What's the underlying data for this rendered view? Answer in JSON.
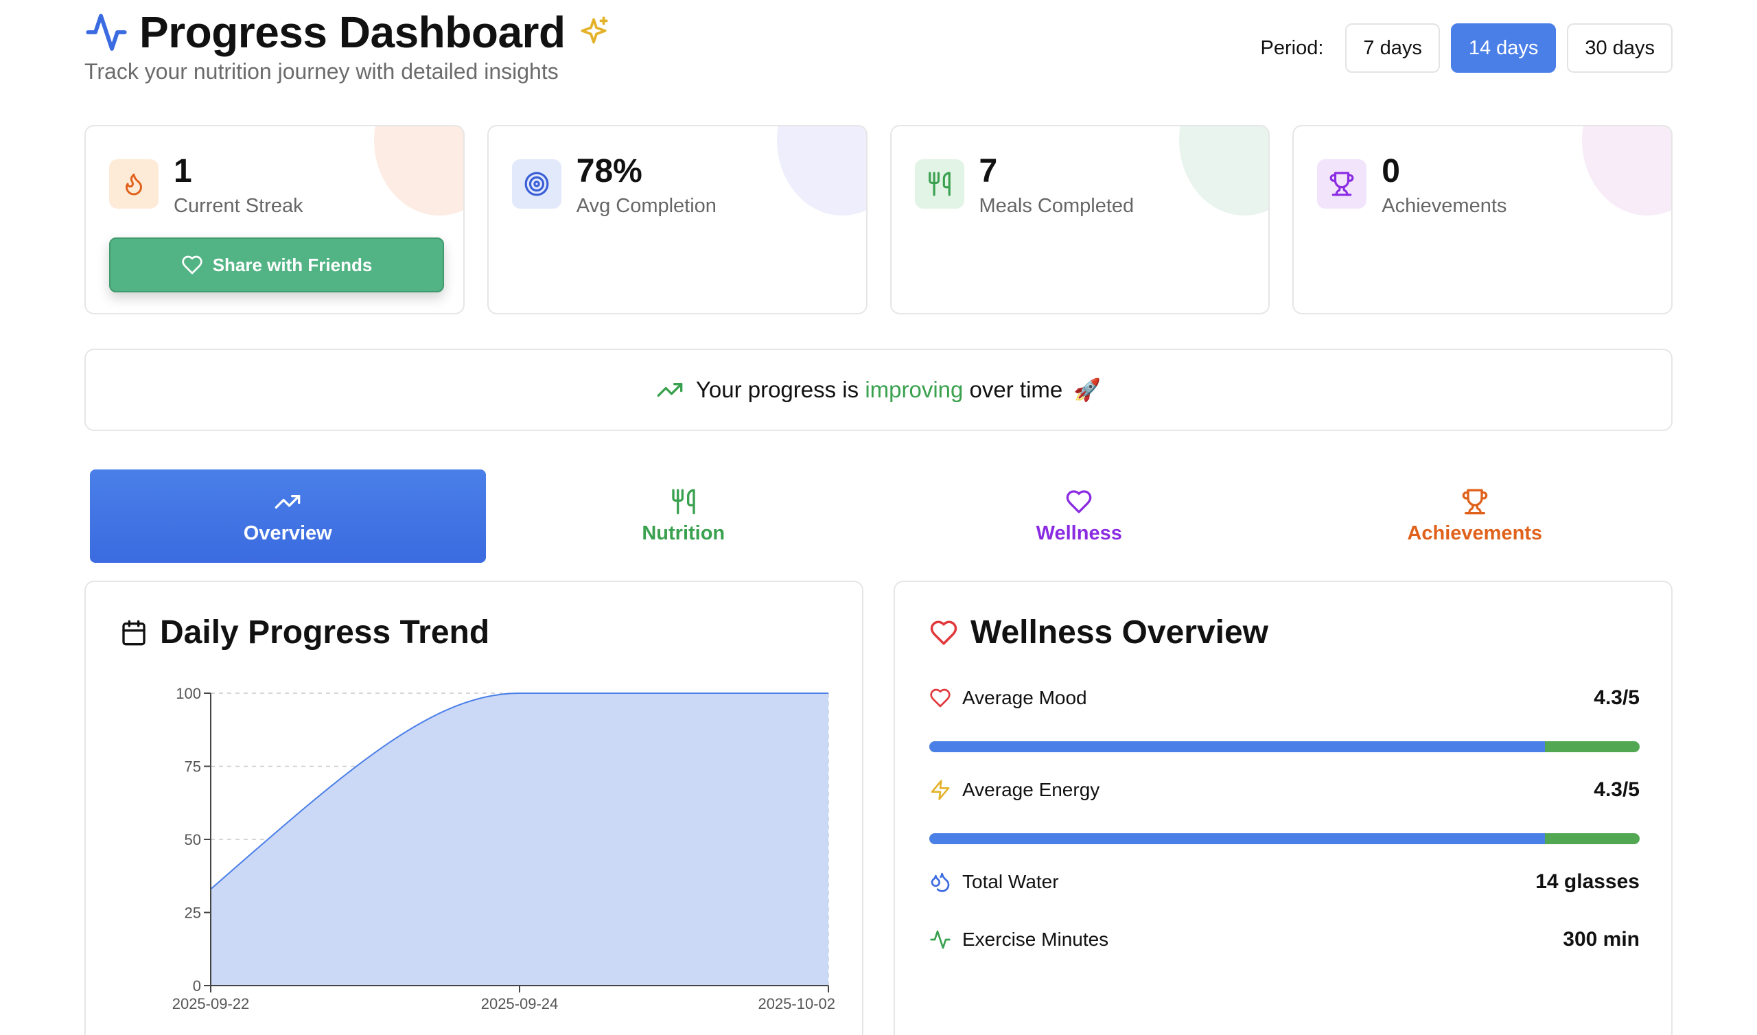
{
  "header": {
    "title": "Progress Dashboard",
    "subtitle": "Track your nutrition journey with detailed insights",
    "period_label": "Period:",
    "period_options": [
      "7 days",
      "14 days",
      "30 days"
    ],
    "period_selected": "14 days"
  },
  "stats": [
    {
      "value": "1",
      "label": "Current Streak",
      "icon": "flame-icon",
      "color": "#e0611b"
    },
    {
      "value": "78%",
      "label": "Avg Completion",
      "icon": "target-icon",
      "color": "#3b5fd6"
    },
    {
      "value": "7",
      "label": "Meals Completed",
      "icon": "utensils-icon",
      "color": "#3aa14f"
    },
    {
      "value": "0",
      "label": "Achievements",
      "icon": "trophy-icon",
      "color": "#8a2be2"
    }
  ],
  "share_button": {
    "label": "Share with Friends",
    "icon": "heart-icon"
  },
  "banner": {
    "prefix": "Your progress is",
    "highlight": "improving",
    "suffix": "over time",
    "emoji": "🚀"
  },
  "tabs": [
    {
      "label": "Overview",
      "icon": "trending-up-icon",
      "active": true
    },
    {
      "label": "Nutrition",
      "icon": "utensils-icon",
      "color": "#3aa14f"
    },
    {
      "label": "Wellness",
      "icon": "heart-icon",
      "color": "#8a2be2"
    },
    {
      "label": "Achievements",
      "icon": "trophy-icon",
      "color": "#e0611b"
    }
  ],
  "trend_panel": {
    "title": "Daily Progress Trend",
    "icon": "calendar-icon"
  },
  "chart_data": {
    "type": "area",
    "x": [
      "2025-09-22",
      "2025-09-24",
      "2025-10-02"
    ],
    "series": [
      {
        "values": [
          33,
          100,
          100
        ]
      }
    ],
    "ylim": [
      0,
      100
    ],
    "yticks": [
      0,
      25,
      50,
      75,
      100
    ],
    "xticks": [
      "2025-09-22",
      "2025-09-24",
      "2025-10-02"
    ],
    "grid": true,
    "fill_color": "#cbd8f6",
    "line_color": "#4a7fe8"
  },
  "wellness_panel": {
    "title": "Wellness Overview",
    "icon": "heart-icon",
    "metrics": [
      {
        "label": "Average Mood",
        "value": "4.3/5",
        "icon": "heart-icon",
        "bar_fraction": 0.867
      },
      {
        "label": "Average Energy",
        "value": "4.3/5",
        "icon": "zap-icon",
        "bar_fraction": 0.867
      },
      {
        "label": "Total Water",
        "value": "14 glasses",
        "icon": "droplets-icon"
      },
      {
        "label": "Exercise Minutes",
        "value": "300 min",
        "icon": "activity-icon"
      }
    ]
  }
}
